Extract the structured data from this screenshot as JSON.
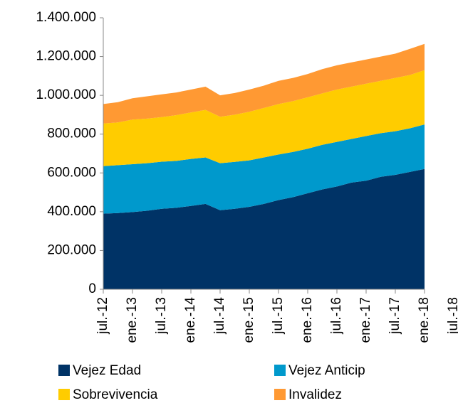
{
  "chart_data": {
    "type": "stacked_area",
    "categories": [
      "jul.-12",
      null,
      "ene.-13",
      null,
      "jul.-13",
      null,
      "ene.-14",
      null,
      "jul.-14",
      null,
      "ene.-15",
      null,
      "jul.-15",
      null,
      "ene.-16",
      null,
      "jul.-16",
      null,
      "ene.-17",
      null,
      "jul.-17",
      null,
      "ene.-18",
      null,
      "jul.-18"
    ],
    "series": [
      {
        "name": "Vejez Edad",
        "color": "#003366",
        "values": [
          390000,
          393000,
          398000,
          405000,
          415000,
          420000,
          430000,
          440000,
          408000,
          415000,
          425000,
          440000,
          460000,
          475000,
          495000,
          515000,
          530000,
          550000,
          560000,
          580000,
          590000,
          605000,
          620000,
          null,
          null
        ]
      },
      {
        "name": "Vejez Anticip",
        "color": "#0099cc",
        "values": [
          245000,
          247000,
          247000,
          245000,
          243000,
          242000,
          242000,
          240000,
          242000,
          242000,
          240000,
          240000,
          235000,
          233000,
          230000,
          230000,
          230000,
          225000,
          230000,
          225000,
          225000,
          225000,
          230000,
          null,
          null
        ]
      },
      {
        "name": "Sobrevivencia",
        "color": "#ffcc00",
        "values": [
          220000,
          220000,
          230000,
          230000,
          230000,
          236000,
          240000,
          245000,
          240000,
          243000,
          250000,
          255000,
          260000,
          262000,
          265000,
          265000,
          270000,
          270000,
          270000,
          270000,
          275000,
          275000,
          280000,
          null,
          null
        ]
      },
      {
        "name": "Invalidez",
        "color": "#ff9933",
        "values": [
          100000,
          105000,
          110000,
          115000,
          117000,
          117000,
          118000,
          120000,
          110000,
          112000,
          115000,
          115000,
          120000,
          120000,
          120000,
          125000,
          125000,
          125000,
          125000,
          125000,
          125000,
          135000,
          135000,
          null,
          null
        ]
      }
    ],
    "ylim": [
      0,
      1400000
    ],
    "yticks": [
      0,
      {
        "value": 200000,
        "label": "200.000"
      },
      {
        "value": 400000,
        "label": "400.000"
      },
      {
        "value": 600000,
        "label": "600.000"
      },
      {
        "value": 800000,
        "label": "800.000"
      },
      {
        "value": 1000000,
        "label": "1.000.000"
      },
      {
        "value": 1200000,
        "label": "1.200.000"
      },
      {
        "value": 1400000,
        "label": "1.400.000"
      }
    ],
    "grid": false
  }
}
